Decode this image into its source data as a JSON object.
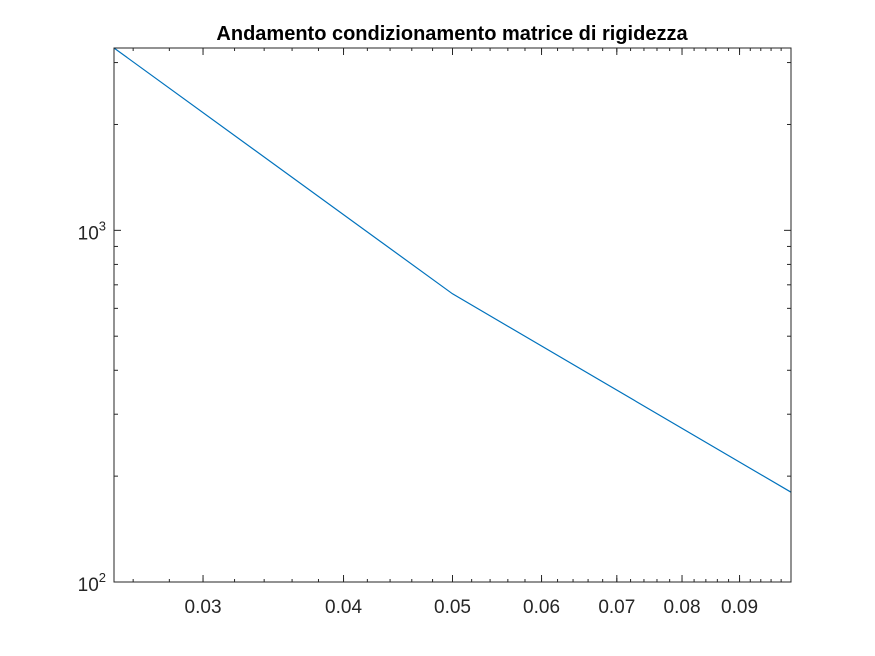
{
  "chart_data": {
    "type": "line",
    "title": "Andamento condizionamento matrice di rigidezza",
    "xlabel": "",
    "ylabel": "",
    "xscale": "log",
    "yscale": "log",
    "xlim": [
      0.025,
      0.1
    ],
    "ylim": [
      100,
      3300
    ],
    "grid": false,
    "box": true,
    "x_ticks": [
      {
        "value": 0.03,
        "label": "0.03"
      },
      {
        "value": 0.04,
        "label": "0.04"
      },
      {
        "value": 0.05,
        "label": "0.05"
      },
      {
        "value": 0.06,
        "label": "0.06"
      },
      {
        "value": 0.07,
        "label": "0.07"
      },
      {
        "value": 0.08,
        "label": "0.08"
      },
      {
        "value": 0.09,
        "label": "0.09"
      }
    ],
    "y_ticks": [
      {
        "value": 100,
        "base": "10",
        "exp": "2"
      },
      {
        "value": 1000,
        "base": "10",
        "exp": "3"
      }
    ],
    "series": [
      {
        "color": "#0072bd",
        "x": [
          0.025,
          0.05,
          0.1
        ],
        "y": [
          3300,
          660,
          180
        ]
      }
    ]
  }
}
